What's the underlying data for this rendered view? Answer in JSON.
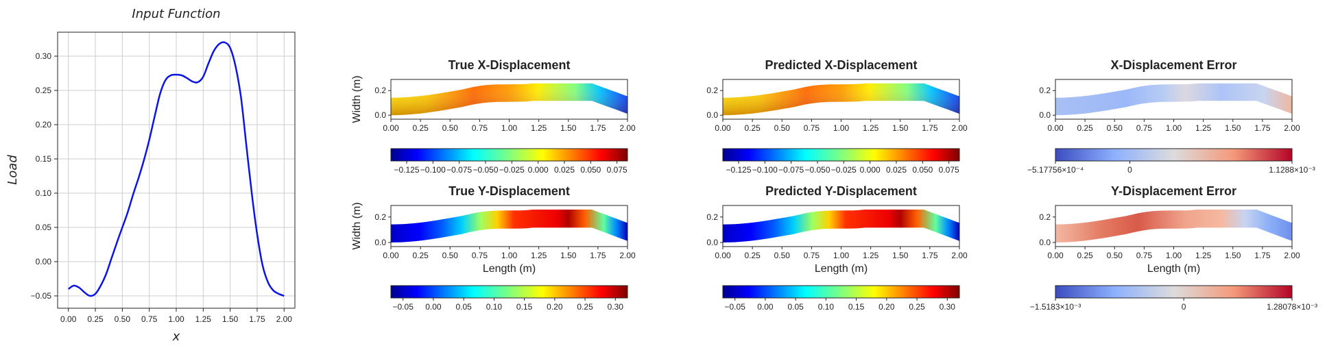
{
  "chart_data": [
    {
      "id": "input",
      "type": "line",
      "title": "Input Function",
      "xlabel": "x",
      "ylabel": "Load",
      "xlim": [
        -0.1,
        2.1
      ],
      "ylim": [
        -0.068,
        0.335
      ],
      "xticks": [
        "0.00",
        "0.25",
        "0.50",
        "0.75",
        "1.00",
        "1.25",
        "1.50",
        "1.75",
        "2.00"
      ],
      "yticks": [
        "-0.05",
        "0.00",
        "0.05",
        "0.10",
        "0.15",
        "0.20",
        "0.25",
        "0.30"
      ],
      "grid": true,
      "line_color": "#0a14e6",
      "x": [
        0.0,
        0.05,
        0.1,
        0.15,
        0.2,
        0.25,
        0.3,
        0.35,
        0.4,
        0.45,
        0.5,
        0.55,
        0.6,
        0.65,
        0.7,
        0.75,
        0.8,
        0.85,
        0.9,
        0.95,
        1.0,
        1.05,
        1.1,
        1.15,
        1.2,
        1.25,
        1.3,
        1.35,
        1.4,
        1.45,
        1.5,
        1.55,
        1.6,
        1.65,
        1.7,
        1.75,
        1.8,
        1.85,
        1.9,
        1.95,
        2.0
      ],
      "y": [
        -0.04,
        -0.035,
        -0.038,
        -0.045,
        -0.05,
        -0.047,
        -0.035,
        -0.018,
        0.005,
        0.028,
        0.05,
        0.072,
        0.098,
        0.122,
        0.148,
        0.178,
        0.212,
        0.245,
        0.265,
        0.272,
        0.273,
        0.272,
        0.268,
        0.263,
        0.262,
        0.27,
        0.29,
        0.308,
        0.318,
        0.32,
        0.312,
        0.285,
        0.24,
        0.17,
        0.1,
        0.04,
        -0.005,
        -0.03,
        -0.042,
        -0.047,
        -0.05
      ]
    },
    {
      "id": "true-x",
      "type": "heatmap",
      "title": "True X-Displacement",
      "ylabel": "Width (m)",
      "xlabel": "",
      "xticks": [
        "0.00",
        "0.25",
        "0.50",
        "0.75",
        "1.00",
        "1.25",
        "1.50",
        "1.75",
        "2.00"
      ],
      "yticks": [
        "0.0",
        "0.2"
      ],
      "colormap": "jet",
      "colorbar_ticks": [
        "-0.125",
        "-0.100",
        "-0.075",
        "-0.050",
        "-0.025",
        "0.000",
        "0.025",
        "0.050",
        "0.075"
      ],
      "colorbar_range": [
        -0.14,
        0.085
      ]
    },
    {
      "id": "pred-x",
      "type": "heatmap",
      "title": "Predicted X-Displacement",
      "ylabel": "",
      "xlabel": "",
      "xticks": [
        "0.00",
        "0.25",
        "0.50",
        "0.75",
        "1.00",
        "1.25",
        "1.50",
        "1.75",
        "2.00"
      ],
      "yticks": [
        "0.0",
        "0.2"
      ],
      "colormap": "jet",
      "colorbar_ticks": [
        "-0.125",
        "-0.100",
        "-0.075",
        "-0.050",
        "-0.025",
        "0.000",
        "0.025",
        "0.050",
        "0.075"
      ],
      "colorbar_range": [
        -0.14,
        0.085
      ]
    },
    {
      "id": "err-x",
      "type": "heatmap",
      "title": "X-Displacement Error",
      "ylabel": "",
      "xlabel": "",
      "xticks": [
        "0.00",
        "0.25",
        "0.50",
        "0.75",
        "1.00",
        "1.25",
        "1.50",
        "1.75",
        "2.00"
      ],
      "yticks": [
        "0.0",
        "0.2"
      ],
      "colormap": "coolwarm",
      "colorbar_labels": [
        "−5.17756×10⁻⁴",
        "0",
        "1.1288×10⁻³"
      ],
      "colorbar_values": [
        -0.000517756,
        0,
        0.0011288
      ]
    },
    {
      "id": "true-y",
      "type": "heatmap",
      "title": "True Y-Displacement",
      "ylabel": "Width (m)",
      "xlabel": "Length (m)",
      "xticks": [
        "0.00",
        "0.25",
        "0.50",
        "0.75",
        "1.00",
        "1.25",
        "1.50",
        "1.75",
        "2.00"
      ],
      "yticks": [
        "0.0",
        "0.2"
      ],
      "colormap": "jet",
      "colorbar_ticks": [
        "-0.05",
        "0.00",
        "0.05",
        "0.10",
        "0.15",
        "0.20",
        "0.25",
        "0.30"
      ],
      "colorbar_range": [
        -0.07,
        0.32
      ]
    },
    {
      "id": "pred-y",
      "type": "heatmap",
      "title": "Predicted Y-Displacement",
      "ylabel": "",
      "xlabel": "Length (m)",
      "xticks": [
        "0.00",
        "0.25",
        "0.50",
        "0.75",
        "1.00",
        "1.25",
        "1.50",
        "1.75",
        "2.00"
      ],
      "yticks": [
        "0.0",
        "0.2"
      ],
      "colormap": "jet",
      "colorbar_ticks": [
        "-0.05",
        "0.00",
        "0.05",
        "0.10",
        "0.15",
        "0.20",
        "0.25",
        "0.30"
      ],
      "colorbar_range": [
        -0.07,
        0.32
      ]
    },
    {
      "id": "err-y",
      "type": "heatmap",
      "title": "Y-Displacement Error",
      "ylabel": "",
      "xlabel": "Length (m)",
      "xticks": [
        "0.00",
        "0.25",
        "0.50",
        "0.75",
        "1.00",
        "1.25",
        "1.50",
        "1.75",
        "2.00"
      ],
      "yticks": [
        "0.0",
        "0.2"
      ],
      "colormap": "coolwarm",
      "colorbar_labels": [
        "−1.5183×10⁻³",
        "0",
        "1.28078×10⁻³"
      ],
      "colorbar_values": [
        -0.0015183,
        0,
        0.00128078
      ]
    }
  ]
}
